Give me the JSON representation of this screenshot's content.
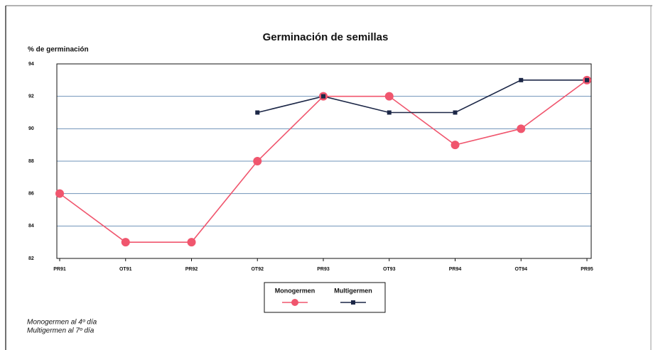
{
  "chart_data": {
    "type": "line",
    "title": "Germinación de semillas",
    "y_label": "% de germinación",
    "categories": [
      "PR91",
      "OT91",
      "PR92",
      "OT92",
      "PR93",
      "OT93",
      "PR94",
      "OT94",
      "PR95"
    ],
    "series": [
      {
        "name": "Monogermen",
        "color": "#f0566e",
        "marker": "circle",
        "values": [
          86,
          83,
          83,
          88,
          92,
          92,
          89,
          90,
          93
        ]
      },
      {
        "name": "Multigermen",
        "color": "#1c2747",
        "marker": "square",
        "values": [
          null,
          null,
          null,
          91,
          92,
          91,
          91,
          93,
          93
        ]
      }
    ],
    "ylim": [
      82,
      94
    ],
    "yticks": [
      82,
      84,
      86,
      88,
      90,
      92,
      94
    ],
    "grid": true,
    "notes": [
      "Monogermen al 4º día",
      "Multigermen al 7º día"
    ]
  }
}
